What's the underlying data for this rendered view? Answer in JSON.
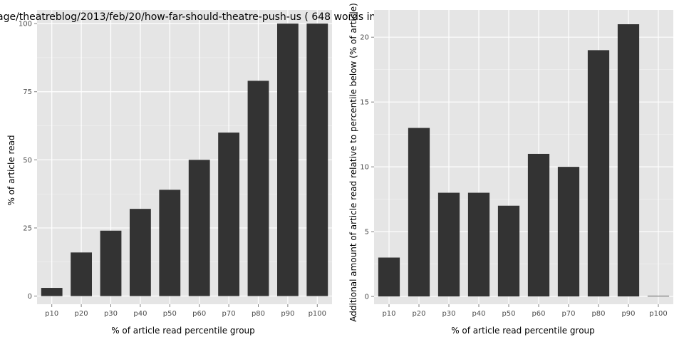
{
  "chart_data": [
    {
      "type": "bar",
      "title": "age/theatreblog/2013/feb/20/how-far-should-theatre-push-us ( 648 words in",
      "xlabel": "% of article read percentile group",
      "ylabel": "% of article read",
      "categories": [
        "p10",
        "p20",
        "p30",
        "p40",
        "p50",
        "p60",
        "p70",
        "p80",
        "p90",
        "p100"
      ],
      "values": [
        3,
        16,
        24,
        32,
        39,
        50,
        60,
        79,
        100,
        100
      ],
      "ylim": [
        -3,
        105
      ],
      "yticks": [
        0,
        25,
        50,
        75,
        100
      ],
      "grid": true,
      "bar_color": "#333333",
      "panel_color": "#e5e5e5"
    },
    {
      "type": "bar",
      "title": "",
      "xlabel": "% of article read percentile group",
      "ylabel": "Additional amount of article read relative to percentile below (% of article)",
      "categories": [
        "p10",
        "p20",
        "p30",
        "p40",
        "p50",
        "p60",
        "p70",
        "p80",
        "p90",
        "p100"
      ],
      "values": [
        3,
        13,
        8,
        8,
        7,
        11,
        10,
        19,
        21,
        0
      ],
      "ylim": [
        -0.6,
        22.1
      ],
      "yticks": [
        0,
        5,
        10,
        15,
        20
      ],
      "grid": true,
      "bar_color": "#333333",
      "panel_color": "#e5e5e5"
    }
  ]
}
